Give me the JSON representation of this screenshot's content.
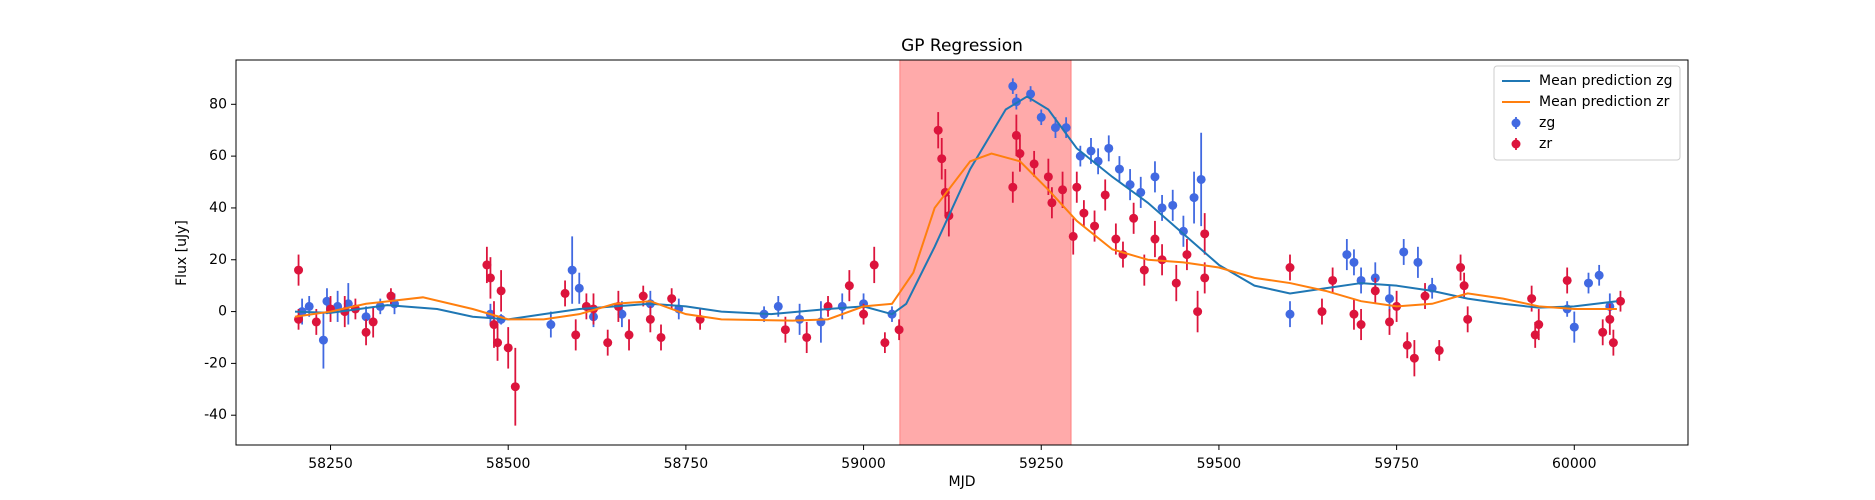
{
  "chart_data": {
    "type": "scatter",
    "title": "GP Regression",
    "xlabel": "MJD",
    "ylabel": "Flux [uJy]",
    "xlim": [
      58117,
      60160
    ],
    "ylim": [
      -51.5,
      97.1
    ],
    "xticks": [
      58250,
      58500,
      58750,
      59000,
      59250,
      59500,
      59750,
      60000
    ],
    "yticks": [
      -40,
      -20,
      0,
      20,
      40,
      60,
      80
    ],
    "legend": "upper right",
    "shaded_region": {
      "x": [
        59051,
        59292
      ],
      "color": "#ff5555"
    },
    "series": [
      {
        "name": "Mean prediction zg",
        "type": "line",
        "color": "#1f77b4",
        "x": [
          58200,
          58250,
          58330,
          58400,
          58450,
          58500,
          58550,
          58600,
          58650,
          58700,
          58750,
          58800,
          58870,
          58950,
          59000,
          59040,
          59060,
          59100,
          59150,
          59200,
          59230,
          59260,
          59300,
          59350,
          59400,
          59450,
          59500,
          59550,
          59600,
          59650,
          59700,
          59750,
          59800,
          59850,
          59900,
          59950,
          60000,
          60060
        ],
        "values": [
          0,
          -0.5,
          2.5,
          1,
          -2,
          -3,
          -1,
          1,
          2,
          3,
          2,
          0,
          -1,
          1,
          2,
          -1,
          3,
          25,
          55,
          78,
          83,
          78,
          63,
          52,
          42,
          30,
          18,
          10,
          7,
          9,
          11,
          10,
          8,
          5,
          3,
          1.5,
          2,
          4
        ]
      },
      {
        "name": "Mean prediction zr",
        "type": "line",
        "color": "#ff7f0e",
        "x": [
          58200,
          58250,
          58300,
          58380,
          58450,
          58500,
          58550,
          58600,
          58650,
          58700,
          58750,
          58800,
          58900,
          58950,
          59000,
          59040,
          59070,
          59100,
          59150,
          59180,
          59220,
          59260,
          59300,
          59350,
          59400,
          59450,
          59500,
          59550,
          59600,
          59650,
          59700,
          59750,
          59800,
          59850,
          59900,
          59950,
          60000,
          60060
        ],
        "values": [
          -2,
          0,
          3,
          5.5,
          1,
          -3,
          -3,
          -1,
          3,
          4,
          -1,
          -3,
          -3.5,
          -3,
          2,
          3,
          15,
          40,
          58,
          61,
          58,
          47,
          35,
          24,
          20,
          19,
          17,
          13,
          11,
          8,
          4,
          2,
          3,
          7,
          5,
          2,
          1,
          1
        ]
      },
      {
        "name": "zg",
        "type": "errorbar",
        "color": "#4169e1",
        "x": [
          58210,
          58220,
          58240,
          58245,
          58260,
          58275,
          58300,
          58320,
          58340,
          58475,
          58490,
          58560,
          58590,
          58600,
          58620,
          58660,
          58700,
          58740,
          58860,
          58880,
          58910,
          58940,
          58970,
          59000,
          59040,
          59210,
          59215,
          59235,
          59250,
          59270,
          59285,
          59305,
          59320,
          59330,
          59345,
          59360,
          59375,
          59390,
          59410,
          59420,
          59435,
          59450,
          59465,
          59475,
          59600,
          59680,
          59690,
          59700,
          59720,
          59740,
          59760,
          59780,
          59800,
          59990,
          60000,
          60020,
          60035,
          60050
        ],
        "values": [
          0,
          2,
          -11,
          4,
          2,
          3,
          -2,
          2,
          3,
          -1,
          -3,
          -5,
          16,
          9,
          -2,
          -1,
          3,
          1,
          -1,
          2,
          -3,
          -4,
          2,
          3,
          -1,
          87,
          81,
          84,
          75,
          71,
          71,
          60,
          62,
          58,
          63,
          55,
          49,
          46,
          52,
          40,
          41,
          31,
          44,
          51,
          -1,
          22,
          19,
          12,
          13,
          5,
          23,
          19,
          9,
          1,
          -6,
          11,
          14,
          2
        ],
        "errors": [
          5,
          4,
          11,
          5,
          6,
          8,
          4,
          3,
          4,
          4,
          2,
          5,
          13,
          6,
          4,
          5,
          5,
          4,
          3,
          4,
          6,
          8,
          5,
          4,
          3,
          3,
          3,
          3,
          3,
          4,
          4,
          4,
          5,
          5,
          5,
          5,
          6,
          6,
          6,
          5,
          6,
          6,
          10,
          18,
          5,
          6,
          5,
          5,
          6,
          5,
          5,
          6,
          4,
          3,
          6,
          4,
          4,
          5
        ]
      },
      {
        "name": "zr",
        "type": "errorbar",
        "color": "#dc143c",
        "x": [
          58205,
          58205,
          58230,
          58250,
          58270,
          58285,
          58300,
          58310,
          58335,
          58470,
          58475,
          58480,
          58485,
          58490,
          58500,
          58510,
          58580,
          58595,
          58610,
          58620,
          58640,
          58655,
          58670,
          58690,
          58700,
          58715,
          58730,
          58770,
          58890,
          58920,
          58950,
          58980,
          59000,
          59015,
          59030,
          59050,
          59105,
          59110,
          59115,
          59120,
          59210,
          59215,
          59220,
          59240,
          59260,
          59265,
          59280,
          59295,
          59300,
          59310,
          59325,
          59340,
          59355,
          59365,
          59380,
          59395,
          59410,
          59420,
          59440,
          59455,
          59470,
          59480,
          59480,
          59600,
          59645,
          59660,
          59690,
          59700,
          59720,
          59740,
          59750,
          59765,
          59775,
          59790,
          59810,
          59840,
          59845,
          59850,
          59940,
          59945,
          59950,
          59990,
          60040,
          60050,
          60055,
          60065
        ],
        "values": [
          16,
          -3,
          -4,
          1,
          0,
          1,
          -8,
          -4,
          6,
          18,
          13,
          -5,
          -12,
          8,
          -14,
          -29,
          7,
          -9,
          2,
          1,
          -12,
          2,
          -9,
          6,
          -3,
          -10,
          5,
          -3,
          -7,
          -10,
          2,
          10,
          -1,
          18,
          -12,
          -7,
          70,
          59,
          46,
          37,
          48,
          68,
          61,
          57,
          52,
          42,
          47,
          29,
          48,
          38,
          33,
          45,
          28,
          22,
          36,
          16,
          28,
          20,
          11,
          22,
          0,
          13,
          30,
          17,
          0,
          12,
          -1,
          -5,
          8,
          -4,
          2,
          -13,
          -18,
          6,
          -15,
          17,
          10,
          -3,
          5,
          -9,
          -5,
          12,
          -8,
          -3,
          -12,
          4
        ],
        "errors": [
          6,
          4,
          5,
          5,
          6,
          4,
          5,
          6,
          3,
          7,
          8,
          9,
          7,
          8,
          8,
          15,
          5,
          6,
          5,
          6,
          5,
          6,
          6,
          4,
          5,
          5,
          4,
          4,
          5,
          6,
          4,
          6,
          4,
          7,
          4,
          4,
          7,
          8,
          9,
          8,
          6,
          8,
          7,
          5,
          7,
          6,
          7,
          7,
          6,
          5,
          6,
          6,
          6,
          5,
          6,
          6,
          7,
          6,
          7,
          6,
          8,
          6,
          8,
          5,
          5,
          5,
          6,
          6,
          5,
          5,
          6,
          5,
          7,
          5,
          4,
          5,
          5,
          5,
          5,
          5,
          6,
          5,
          5,
          6,
          5,
          4
        ]
      }
    ]
  }
}
